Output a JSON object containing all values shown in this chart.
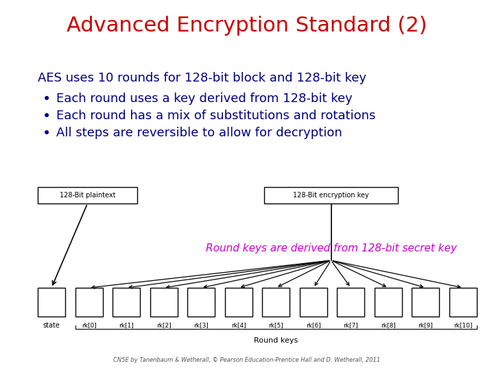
{
  "title": "Advanced Encryption Standard (2)",
  "title_color": "#cc0000",
  "title_fontsize": 22,
  "bg_color": "#ffffff",
  "body_text_color": "#000080",
  "body_fontsize": 13,
  "intro_line": "AES uses 10 rounds for 128-bit block and 128-bit key",
  "bullets": [
    "Each round uses a key derived from 128-bit key",
    "Each round has a mix of substitutions and rotations",
    "All steps are reversible to allow for decryption"
  ],
  "annotation_color": "#cc00cc",
  "annotation_text": "Round keys are derived from 128-bit secret key",
  "annotation_fontsize": 11,
  "footer_text": "CN5E by Tanenbaum & Wetherall, © Pearson Education-Prentice Hall and D. Wetherall, 2011",
  "footer_fontsize": 6,
  "diagram_label_left": "128-Bit plaintext",
  "diagram_label_right": "128-Bit encryption key",
  "diagram_bottom_label": "Round keys",
  "state_label": "state",
  "rk_labels": [
    "rk[0]",
    "rk[1]",
    "rk[2]",
    "rk[3]",
    "rk[4]",
    "rk[5]",
    "rk[6]",
    "rk[7]",
    "rk[8]",
    "rk[9]",
    "rk[10]"
  ],
  "diagram_color": "#000000",
  "intro_indent": 0.07,
  "bullet_indent": 0.085,
  "bullet_text_indent": 0.115
}
